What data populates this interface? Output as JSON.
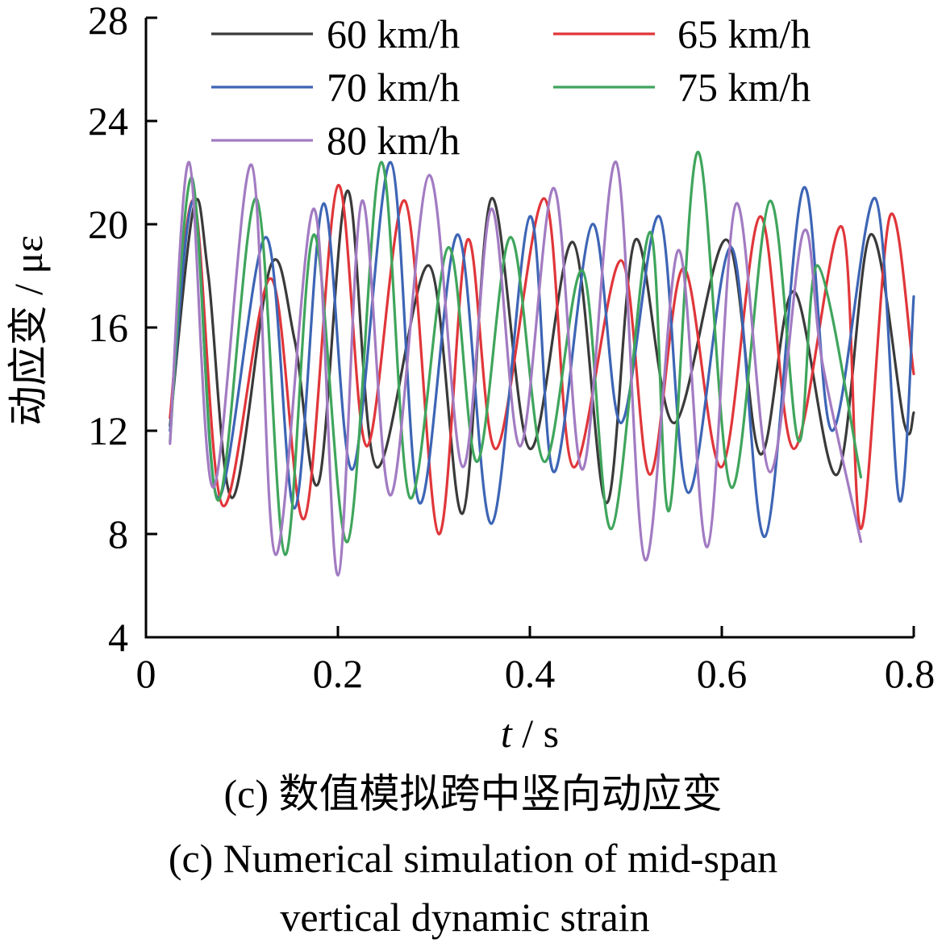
{
  "chart_data": {
    "type": "line",
    "xlabel_var": "t",
    "xlabel_unit": " / s",
    "ylabel": "动应变 / με",
    "xlim": [
      0,
      0.8
    ],
    "ylim": [
      4,
      28
    ],
    "x_ticks": [
      "0",
      "0.2",
      "0.4",
      "0.6",
      "0.8"
    ],
    "y_ticks": [
      "4",
      "8",
      "12",
      "16",
      "20",
      "24",
      "28"
    ],
    "legend_position": "top",
    "grid": false,
    "series": [
      {
        "name": "60 km/h",
        "color": "#3a3a3a",
        "points": [
          [
            0.025,
            12.2
          ],
          [
            0.05,
            20.7
          ],
          [
            0.065,
            18.0
          ],
          [
            0.09,
            9.4
          ],
          [
            0.13,
            18.4
          ],
          [
            0.155,
            15.5
          ],
          [
            0.18,
            10.0
          ],
          [
            0.21,
            21.3
          ],
          [
            0.24,
            10.6
          ],
          [
            0.295,
            18.4
          ],
          [
            0.33,
            8.8
          ],
          [
            0.36,
            21.0
          ],
          [
            0.4,
            11.3
          ],
          [
            0.445,
            19.3
          ],
          [
            0.48,
            9.2
          ],
          [
            0.51,
            19.4
          ],
          [
            0.55,
            12.3
          ],
          [
            0.605,
            19.4
          ],
          [
            0.64,
            11.1
          ],
          [
            0.675,
            17.4
          ],
          [
            0.72,
            10.3
          ],
          [
            0.755,
            19.6
          ],
          [
            0.79,
            12.3
          ],
          [
            0.8,
            12.7
          ]
        ]
      },
      {
        "name": "65 km/h",
        "color": "#e0363a",
        "points": [
          [
            0.025,
            12.5
          ],
          [
            0.05,
            20.9
          ],
          [
            0.08,
            9.1
          ],
          [
            0.13,
            17.9
          ],
          [
            0.165,
            8.6
          ],
          [
            0.2,
            21.5
          ],
          [
            0.23,
            11.4
          ],
          [
            0.27,
            20.9
          ],
          [
            0.305,
            8.0
          ],
          [
            0.335,
            19.4
          ],
          [
            0.365,
            11.3
          ],
          [
            0.415,
            21.0
          ],
          [
            0.445,
            10.6
          ],
          [
            0.495,
            18.6
          ],
          [
            0.525,
            10.3
          ],
          [
            0.56,
            18.3
          ],
          [
            0.6,
            10.6
          ],
          [
            0.64,
            20.3
          ],
          [
            0.675,
            11.3
          ],
          [
            0.725,
            19.9
          ],
          [
            0.745,
            8.2
          ],
          [
            0.775,
            20.3
          ],
          [
            0.8,
            14.2
          ]
        ]
      },
      {
        "name": "70 km/h",
        "color": "#3d65b5",
        "points": [
          [
            0.025,
            12.0
          ],
          [
            0.05,
            20.9
          ],
          [
            0.075,
            9.4
          ],
          [
            0.125,
            19.5
          ],
          [
            0.155,
            9.0
          ],
          [
            0.185,
            20.8
          ],
          [
            0.215,
            10.5
          ],
          [
            0.255,
            22.4
          ],
          [
            0.285,
            9.2
          ],
          [
            0.325,
            19.6
          ],
          [
            0.36,
            8.4
          ],
          [
            0.4,
            20.3
          ],
          [
            0.425,
            10.4
          ],
          [
            0.465,
            20.0
          ],
          [
            0.495,
            12.3
          ],
          [
            0.535,
            20.3
          ],
          [
            0.565,
            9.6
          ],
          [
            0.61,
            19.1
          ],
          [
            0.645,
            7.9
          ],
          [
            0.685,
            21.4
          ],
          [
            0.715,
            12.0
          ],
          [
            0.76,
            21.0
          ],
          [
            0.785,
            9.3
          ],
          [
            0.8,
            17.2
          ]
        ]
      },
      {
        "name": "75 km/h",
        "color": "#3fa55c",
        "points": [
          [
            0.025,
            11.6
          ],
          [
            0.048,
            21.8
          ],
          [
            0.075,
            9.3
          ],
          [
            0.115,
            21.0
          ],
          [
            0.145,
            7.2
          ],
          [
            0.175,
            19.6
          ],
          [
            0.21,
            7.7
          ],
          [
            0.245,
            22.4
          ],
          [
            0.275,
            9.4
          ],
          [
            0.315,
            19.1
          ],
          [
            0.345,
            10.8
          ],
          [
            0.38,
            19.5
          ],
          [
            0.415,
            10.8
          ],
          [
            0.455,
            18.2
          ],
          [
            0.485,
            8.2
          ],
          [
            0.525,
            19.7
          ],
          [
            0.545,
            8.9
          ],
          [
            0.575,
            22.8
          ],
          [
            0.61,
            9.8
          ],
          [
            0.65,
            20.9
          ],
          [
            0.68,
            11.6
          ],
          [
            0.7,
            18.4
          ],
          [
            0.745,
            10.2
          ]
        ]
      },
      {
        "name": "80 km/h",
        "color": "#a27bc2",
        "points": [
          [
            0.025,
            11.5
          ],
          [
            0.045,
            22.4
          ],
          [
            0.07,
            9.8
          ],
          [
            0.11,
            22.3
          ],
          [
            0.135,
            7.2
          ],
          [
            0.175,
            20.6
          ],
          [
            0.2,
            6.4
          ],
          [
            0.225,
            20.9
          ],
          [
            0.255,
            9.5
          ],
          [
            0.295,
            21.9
          ],
          [
            0.33,
            10.6
          ],
          [
            0.36,
            20.6
          ],
          [
            0.39,
            11.4
          ],
          [
            0.425,
            21.4
          ],
          [
            0.455,
            10.5
          ],
          [
            0.49,
            22.4
          ],
          [
            0.52,
            7.0
          ],
          [
            0.555,
            19.0
          ],
          [
            0.585,
            7.5
          ],
          [
            0.615,
            20.8
          ],
          [
            0.65,
            10.4
          ],
          [
            0.685,
            19.7
          ],
          [
            0.705,
            14.6
          ],
          [
            0.745,
            7.7
          ]
        ]
      }
    ]
  },
  "caption": {
    "cn": "(c)  数值模拟跨中竖向动应变",
    "en_line1": "(c)  Numerical simulation of mid-span",
    "en_line2": "vertical dynamic strain"
  }
}
